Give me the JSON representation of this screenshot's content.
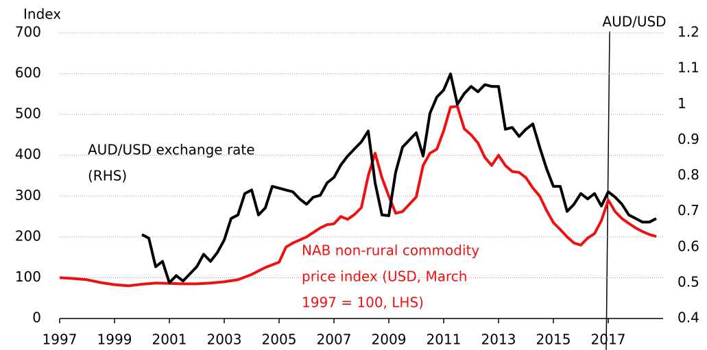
{
  "chart_data": {
    "type": "line",
    "y_label": "Index",
    "y2_label": "AUD/USD",
    "xlim": [
      1997,
      2019
    ],
    "xticks": [
      1997,
      1999,
      2001,
      2003,
      2005,
      2007,
      2009,
      2011,
      2013,
      2015,
      2017
    ],
    "ylim": [
      0,
      700
    ],
    "yticks": [
      0,
      100,
      200,
      300,
      400,
      500,
      600,
      700
    ],
    "y2lim": [
      0.4,
      1.2
    ],
    "y2ticks": [
      0.4,
      0.5,
      0.6,
      0.7,
      0.8,
      0.9,
      1,
      1.1,
      1.2
    ],
    "grid": true,
    "series": [
      {
        "name": [
          "NAB non-rural commodity",
          "price index  (USD, March",
          "1997 = 100, LHS)"
        ],
        "color": "#ee1111",
        "x": [
          1997,
          1997.5,
          1998,
          1998.5,
          1999,
          1999.5,
          2000,
          2000.5,
          2001,
          2001.5,
          2002,
          2002.5,
          2003,
          2003.5,
          2004,
          2004.5,
          2005,
          2005.25,
          2005.5,
          2006,
          2006.5,
          2006.75,
          2007,
          2007.25,
          2007.5,
          2007.75,
          2008,
          2008.25,
          2008.5,
          2008.75,
          2009,
          2009.25,
          2009.5,
          2009.75,
          2010,
          2010.25,
          2010.5,
          2010.75,
          2011,
          2011.25,
          2011.5,
          2011.75,
          2012,
          2012.25,
          2012.5,
          2012.75,
          2013,
          2013.25,
          2013.5,
          2013.75,
          2014,
          2014.25,
          2014.5,
          2014.75,
          2015,
          2015.25,
          2015.5,
          2015.75,
          2016,
          2016.25,
          2016.5,
          2016.75,
          2017,
          2017.25,
          2017.5,
          2017.75,
          2018,
          2018.25,
          2018.5,
          2018.75
        ],
        "values": [
          100,
          98,
          95,
          88,
          83,
          80,
          84,
          87,
          86,
          85,
          85,
          87,
          90,
          95,
          108,
          125,
          138,
          175,
          185,
          200,
          222,
          230,
          232,
          250,
          243,
          255,
          272,
          350,
          405,
          345,
          300,
          258,
          262,
          280,
          298,
          375,
          405,
          415,
          460,
          518,
          520,
          465,
          450,
          430,
          395,
          375,
          400,
          375,
          360,
          358,
          345,
          320,
          300,
          265,
          235,
          218,
          200,
          185,
          180,
          197,
          208,
          240,
          290,
          262,
          245,
          233,
          222,
          213,
          206,
          201
        ]
      },
      {
        "name": [
          "AUD/USD exchange rate",
          "(RHS)"
        ],
        "color": "#000000",
        "axis": "y2",
        "x": [
          2000,
          2000.25,
          2000.5,
          2000.75,
          2001,
          2001.25,
          2001.5,
          2001.75,
          2002,
          2002.25,
          2002.5,
          2002.75,
          2003,
          2003.25,
          2003.5,
          2003.75,
          2004,
          2004.25,
          2004.5,
          2004.75,
          2005,
          2005.25,
          2005.5,
          2005.75,
          2006,
          2006.25,
          2006.5,
          2006.75,
          2007,
          2007.25,
          2007.5,
          2007.75,
          2008,
          2008.25,
          2008.5,
          2008.75,
          2009,
          2009.25,
          2009.5,
          2009.75,
          2010,
          2010.25,
          2010.5,
          2010.75,
          2011,
          2011.25,
          2011.5,
          2011.75,
          2012,
          2012.25,
          2012.5,
          2012.75,
          2013,
          2013.25,
          2013.5,
          2013.75,
          2014,
          2014.25,
          2014.5,
          2014.75,
          2015,
          2015.25,
          2015.5,
          2015.75,
          2016,
          2016.25,
          2016.5,
          2016.75,
          2017,
          2017.25,
          2017.5,
          2017.75,
          2018,
          2018.25,
          2018.5,
          2018.75
        ],
        "values": [
          0.635,
          0.625,
          0.545,
          0.56,
          0.5,
          0.52,
          0.505,
          0.525,
          0.545,
          0.58,
          0.56,
          0.585,
          0.62,
          0.68,
          0.69,
          0.75,
          0.76,
          0.69,
          0.71,
          0.77,
          0.765,
          0.76,
          0.755,
          0.735,
          0.72,
          0.74,
          0.745,
          0.78,
          0.795,
          0.83,
          0.855,
          0.875,
          0.895,
          0.925,
          0.78,
          0.69,
          0.688,
          0.81,
          0.88,
          0.9,
          0.92,
          0.855,
          0.975,
          1.02,
          1.04,
          1.085,
          1.0,
          1.03,
          1.05,
          1.035,
          1.055,
          1.05,
          1.05,
          0.93,
          0.935,
          0.91,
          0.93,
          0.945,
          0.88,
          0.82,
          0.77,
          0.77,
          0.7,
          0.72,
          0.75,
          0.735,
          0.75,
          0.715,
          0.755,
          0.74,
          0.72,
          0.69,
          0.68,
          0.67,
          0.67,
          0.68
        ]
      }
    ]
  }
}
